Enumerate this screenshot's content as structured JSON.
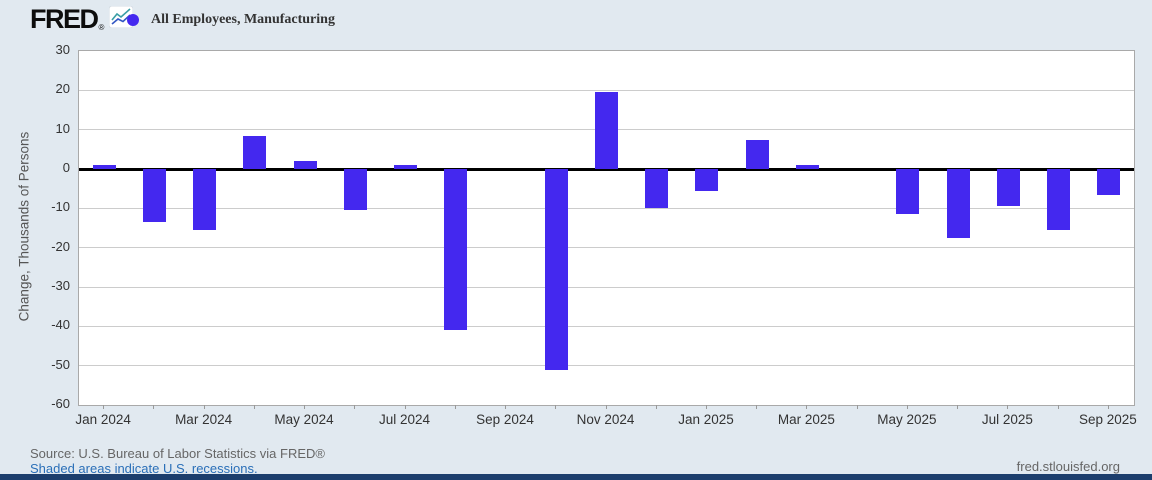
{
  "header": {
    "logo_text": "FRED",
    "registered_mark": "®",
    "legend_label": "All Employees, Manufacturing"
  },
  "chart_data": {
    "type": "bar",
    "title": "All Employees, Manufacturing",
    "ylabel": "Change, Thousands of Persons",
    "ylim": [
      -60,
      30
    ],
    "ytick_step": 10,
    "grid": true,
    "legend_position": "top-left",
    "categories": [
      "Jan 2024",
      "Feb 2024",
      "Mar 2024",
      "Apr 2024",
      "May 2024",
      "Jun 2024",
      "Jul 2024",
      "Aug 2024",
      "Sep 2024",
      "Oct 2024",
      "Nov 2024",
      "Dec 2024",
      "Jan 2025",
      "Feb 2025",
      "Mar 2025",
      "Apr 2025",
      "May 2025",
      "Jun 2025",
      "Jul 2025",
      "Aug 2025",
      "Sep 2025"
    ],
    "values": [
      1,
      -13.5,
      -15.5,
      8.5,
      2,
      -10.5,
      1,
      -41,
      0,
      -51,
      19.5,
      -10,
      -5.5,
      7.5,
      1,
      0,
      -11.5,
      -17.5,
      -9.5,
      -15.5,
      -6.5
    ],
    "xtick_labels": [
      "Jan 2024",
      "Mar 2024",
      "May 2024",
      "Jul 2024",
      "Sep 2024",
      "Nov 2024",
      "Jan 2025",
      "Mar 2025",
      "May 2025",
      "Jul 2025",
      "Sep 2025"
    ],
    "series_color": "#4428ef"
  },
  "footer": {
    "source": "Source: U.S. Bureau of Labor Statistics via FRED®",
    "recession_note": "Shaded areas indicate U.S. recessions.",
    "site_url": "fred.stlouisfed.org"
  },
  "colors": {
    "background": "#e1e9f0",
    "plot_background": "#ffffff",
    "bar": "#4428ef",
    "gridline": "#cccccc",
    "zero_line": "#000000",
    "axis_text": "#333333",
    "muted_text": "#666666",
    "link": "#2a6fb8",
    "bottom_bar": "#1c3e6d"
  }
}
